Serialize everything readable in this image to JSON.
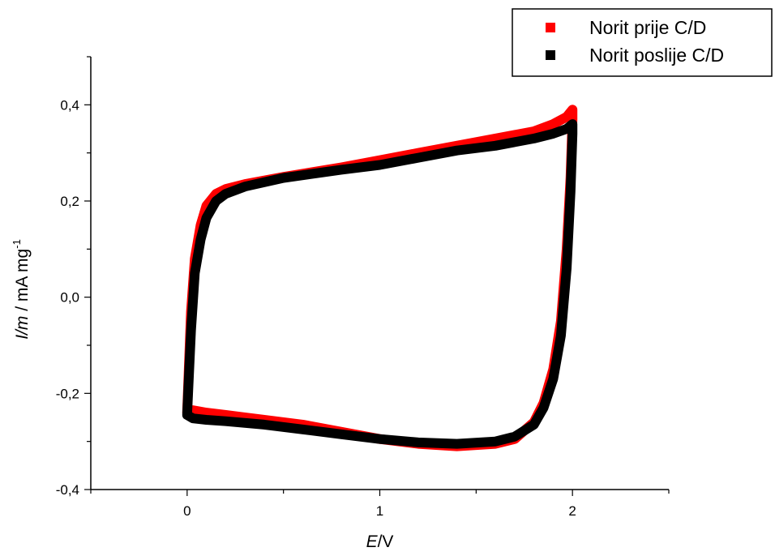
{
  "chart_data": {
    "type": "line",
    "xlabel": {
      "italic": "E",
      "rest": "/V"
    },
    "ylabel": {
      "italic": "I/m",
      "rest": " / mA mg",
      "sup": "-1"
    },
    "xlim": [
      -0.5,
      2.5
    ],
    "ylim": [
      -0.4,
      0.5
    ],
    "x_ticks": [
      0,
      1,
      2
    ],
    "x_tick_labels": [
      "0",
      "1",
      "2"
    ],
    "y_ticks": [
      -0.4,
      -0.2,
      0.0,
      0.2,
      0.4
    ],
    "y_tick_labels": [
      "-0,4",
      "-0,2",
      "0,0",
      "0,2",
      "0,4"
    ],
    "grid": false,
    "legend_position": "top-right",
    "series": [
      {
        "name": "Norit prije C/D",
        "color": "#ff0000",
        "x": [
          0.0,
          0.02,
          0.04,
          0.07,
          0.1,
          0.15,
          0.2,
          0.3,
          0.5,
          0.8,
          1.0,
          1.2,
          1.4,
          1.6,
          1.8,
          1.9,
          1.97,
          2.0,
          2.0,
          1.99,
          1.97,
          1.94,
          1.9,
          1.85,
          1.8,
          1.7,
          1.6,
          1.4,
          1.2,
          1.0,
          0.8,
          0.6,
          0.4,
          0.2,
          0.1,
          0.03,
          0.0
        ],
        "y": [
          -0.24,
          -0.03,
          0.08,
          0.15,
          0.19,
          0.215,
          0.225,
          0.235,
          0.25,
          0.27,
          0.285,
          0.3,
          0.315,
          0.33,
          0.345,
          0.36,
          0.375,
          0.39,
          0.37,
          0.25,
          0.1,
          -0.05,
          -0.15,
          -0.22,
          -0.26,
          -0.295,
          -0.305,
          -0.31,
          -0.305,
          -0.295,
          -0.28,
          -0.265,
          -0.255,
          -0.245,
          -0.24,
          -0.235,
          -0.24
        ]
      },
      {
        "name": "Norit poslije C/D",
        "color": "#000000",
        "x": [
          0.0,
          0.02,
          0.04,
          0.07,
          0.1,
          0.15,
          0.2,
          0.3,
          0.5,
          0.8,
          1.0,
          1.2,
          1.4,
          1.6,
          1.8,
          1.9,
          1.97,
          2.0,
          2.0,
          1.99,
          1.97,
          1.94,
          1.9,
          1.85,
          1.8,
          1.7,
          1.6,
          1.4,
          1.2,
          1.0,
          0.8,
          0.6,
          0.4,
          0.2,
          0.1,
          0.03,
          0.0
        ],
        "y": [
          -0.245,
          -0.07,
          0.05,
          0.12,
          0.165,
          0.2,
          0.215,
          0.23,
          0.248,
          0.265,
          0.275,
          0.29,
          0.305,
          0.315,
          0.33,
          0.34,
          0.35,
          0.36,
          0.34,
          0.22,
          0.06,
          -0.08,
          -0.17,
          -0.23,
          -0.265,
          -0.29,
          -0.3,
          -0.305,
          -0.302,
          -0.295,
          -0.285,
          -0.275,
          -0.265,
          -0.258,
          -0.255,
          -0.252,
          -0.245
        ]
      }
    ]
  }
}
